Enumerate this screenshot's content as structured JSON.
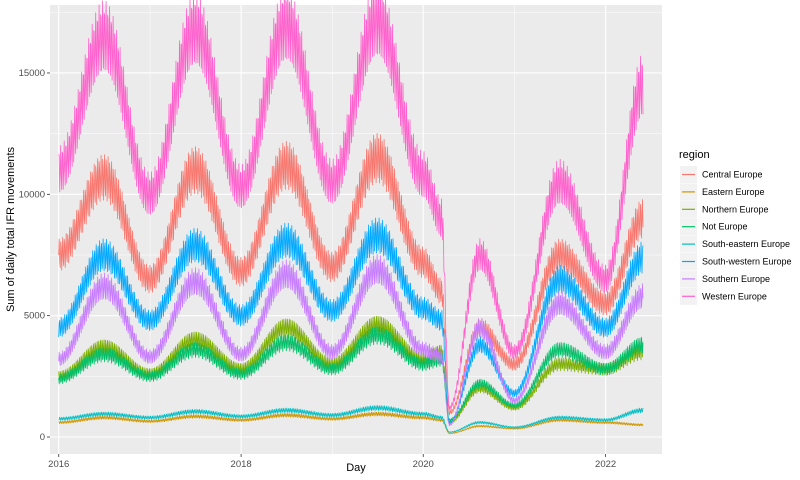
{
  "chart_data": {
    "type": "line",
    "xlabel": "Day",
    "ylabel": "Sum of daily total IFR movements",
    "x_ticks": [
      "2016",
      "2018",
      "2020",
      "2022"
    ],
    "y_ticks": [
      "0",
      "5000",
      "10000",
      "15000"
    ],
    "xlim": [
      "2015-11-27",
      "2022-08-15"
    ],
    "ylim": [
      -700,
      17800
    ],
    "grid": true,
    "legend": {
      "title": "region",
      "position": "right"
    },
    "series": [
      {
        "name": "Central Europe",
        "color": "#F8766D",
        "x": [
          "2016-01-01",
          "2016-07-01",
          "2016-12-31",
          "2017-07-01",
          "2017-12-31",
          "2018-07-01",
          "2018-12-31",
          "2019-07-01",
          "2019-12-31",
          "2020-03-15",
          "2020-04-15",
          "2020-08-15",
          "2020-12-31",
          "2021-07-01",
          "2021-12-31",
          "2022-06-01"
        ],
        "y": [
          7500,
          10700,
          6500,
          11000,
          6800,
          11200,
          7000,
          11500,
          7200,
          6000,
          1000,
          4500,
          3000,
          7500,
          5500,
          9000
        ]
      },
      {
        "name": "Eastern Europe",
        "color": "#CD9600",
        "x": [
          "2016-01-01",
          "2016-07-01",
          "2016-12-31",
          "2017-07-01",
          "2017-12-31",
          "2018-07-01",
          "2018-12-31",
          "2019-07-01",
          "2019-12-31",
          "2020-03-15",
          "2020-04-15",
          "2020-08-15",
          "2020-12-31",
          "2021-07-01",
          "2021-12-31",
          "2022-06-01"
        ],
        "y": [
          600,
          800,
          650,
          850,
          700,
          900,
          750,
          950,
          800,
          700,
          150,
          450,
          350,
          700,
          600,
          500
        ]
      },
      {
        "name": "Northern Europe",
        "color": "#7CAE00",
        "x": [
          "2016-01-01",
          "2016-07-01",
          "2016-12-31",
          "2017-07-01",
          "2017-12-31",
          "2018-07-01",
          "2018-12-31",
          "2019-07-01",
          "2019-12-31",
          "2020-03-15",
          "2020-04-15",
          "2020-08-15",
          "2020-12-31",
          "2021-07-01",
          "2021-12-31",
          "2022-06-01"
        ],
        "y": [
          2500,
          3700,
          2600,
          4000,
          2800,
          4500,
          3000,
          4600,
          3200,
          3500,
          600,
          2000,
          1200,
          3000,
          2800,
          3500
        ]
      },
      {
        "name": "Not Europe",
        "color": "#00BE67",
        "x": [
          "2016-01-01",
          "2016-07-01",
          "2016-12-31",
          "2017-07-01",
          "2017-12-31",
          "2018-07-01",
          "2018-12-31",
          "2019-07-01",
          "2019-12-31",
          "2020-03-15",
          "2020-04-15",
          "2020-08-15",
          "2020-12-31",
          "2021-07-01",
          "2021-12-31",
          "2022-06-01"
        ],
        "y": [
          2400,
          3400,
          2500,
          3600,
          2600,
          3900,
          2800,
          4200,
          3000,
          3200,
          700,
          2200,
          1300,
          3600,
          2800,
          3800
        ]
      },
      {
        "name": "South-eastern Europe",
        "color": "#00BFC4",
        "x": [
          "2016-01-01",
          "2016-07-01",
          "2016-12-31",
          "2017-07-01",
          "2017-12-31",
          "2018-07-01",
          "2018-12-31",
          "2019-07-01",
          "2019-12-31",
          "2020-03-15",
          "2020-04-15",
          "2020-08-15",
          "2020-12-31",
          "2021-07-01",
          "2021-12-31",
          "2022-06-01"
        ],
        "y": [
          750,
          950,
          800,
          1050,
          850,
          1100,
          900,
          1200,
          950,
          800,
          200,
          600,
          400,
          800,
          700,
          1100
        ]
      },
      {
        "name": "South-western Europe",
        "color": "#00A9FF",
        "x": [
          "2016-01-01",
          "2016-07-01",
          "2016-12-31",
          "2017-07-01",
          "2017-12-31",
          "2018-07-01",
          "2018-12-31",
          "2019-07-01",
          "2019-12-31",
          "2020-03-15",
          "2020-04-15",
          "2020-08-15",
          "2020-12-31",
          "2021-07-01",
          "2021-12-31",
          "2022-06-01"
        ],
        "y": [
          4500,
          7500,
          4800,
          7900,
          5000,
          8100,
          5200,
          8300,
          5300,
          4800,
          600,
          3800,
          1800,
          6500,
          4500,
          7400
        ]
      },
      {
        "name": "Southern Europe",
        "color": "#C77CFF",
        "x": [
          "2016-01-01",
          "2016-07-01",
          "2016-12-31",
          "2017-07-01",
          "2017-12-31",
          "2018-07-01",
          "2018-12-31",
          "2019-07-01",
          "2019-12-31",
          "2020-03-15",
          "2020-04-15",
          "2020-08-15",
          "2020-12-31",
          "2021-07-01",
          "2021-12-31",
          "2022-06-01"
        ],
        "y": [
          3200,
          6200,
          3300,
          6400,
          3400,
          6700,
          3500,
          6900,
          3600,
          3300,
          500,
          4500,
          1500,
          5500,
          3500,
          5800
        ]
      },
      {
        "name": "Western Europe",
        "color": "#FF61CC",
        "x": [
          "2016-01-01",
          "2016-07-01",
          "2016-12-31",
          "2017-07-01",
          "2017-12-31",
          "2018-07-01",
          "2018-12-31",
          "2019-07-01",
          "2019-12-31",
          "2020-03-15",
          "2020-04-15",
          "2020-08-15",
          "2020-12-31",
          "2021-07-01",
          "2021-12-31",
          "2022-06-01"
        ],
        "y": [
          11000,
          16500,
          10000,
          16800,
          10300,
          17000,
          10500,
          17200,
          10800,
          9000,
          1200,
          7500,
          3500,
          10500,
          6500,
          14500
        ]
      }
    ]
  }
}
